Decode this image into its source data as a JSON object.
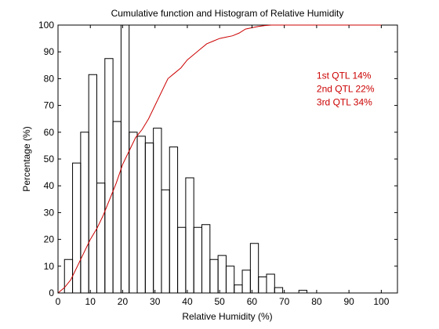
{
  "chart_data": {
    "type": "line",
    "title": "Cumulative function and Histogram of Relative Humidity",
    "xlabel": "Relative Humidity (%)",
    "ylabel": "Percentage (%)",
    "xlim": [
      0,
      105
    ],
    "ylim": [
      0,
      100
    ],
    "xticks": [
      0,
      10,
      20,
      30,
      40,
      50,
      60,
      70,
      80,
      90,
      100
    ],
    "yticks": [
      0,
      10,
      20,
      30,
      40,
      50,
      60,
      70,
      80,
      90,
      100
    ],
    "grid": false,
    "colors": {
      "histogram": "#000000",
      "cumulative": "#cc0000",
      "annotation": "#cc0000",
      "axes": "#000000"
    },
    "annotations": [
      {
        "text": "1st QTL  14%",
        "x": 80,
        "y": 80
      },
      {
        "text": "2nd QTL  22%",
        "x": 80,
        "y": 75
      },
      {
        "text": "3rd QTL  34%",
        "x": 80,
        "y": 70
      }
    ],
    "series": [
      {
        "kind": "histogram",
        "bin_edges": [
          0,
          2,
          4.5,
          7,
          9.5,
          12,
          14.5,
          17,
          19.5,
          22,
          24.5,
          27,
          29.5,
          32,
          34.5,
          37,
          39.5,
          42,
          44.5,
          47,
          49.5,
          52,
          54.5,
          57,
          59.5,
          62,
          64.5,
          67,
          69.5,
          72,
          74.5,
          77,
          79.5
        ],
        "values": [
          0,
          12.5,
          48.5,
          60,
          81.5,
          41,
          87.5,
          64,
          100,
          60,
          58.5,
          56,
          61.5,
          38.5,
          54.5,
          24.5,
          43,
          24.5,
          25.5,
          12.5,
          14,
          10,
          3,
          8.5,
          18.5,
          6,
          7,
          2,
          0,
          0,
          1,
          0
        ]
      },
      {
        "kind": "cumulative",
        "x": [
          0,
          2,
          4,
          6,
          8,
          10,
          12,
          14,
          16,
          18,
          20,
          22,
          24,
          26,
          28,
          30,
          32,
          34,
          36,
          38,
          40,
          42,
          44,
          46,
          48,
          50,
          52,
          54,
          56,
          58,
          60,
          62,
          64,
          66,
          68,
          70,
          72,
          100
        ],
        "y": [
          0,
          2,
          5,
          10,
          15,
          20,
          24,
          29,
          35,
          41,
          48,
          53,
          58,
          61,
          65,
          70,
          75,
          80,
          82,
          84,
          87,
          89,
          91,
          93,
          94,
          95,
          95.5,
          96,
          97,
          98.5,
          99,
          99.5,
          99.8,
          100,
          100,
          100,
          100,
          100
        ]
      }
    ]
  }
}
